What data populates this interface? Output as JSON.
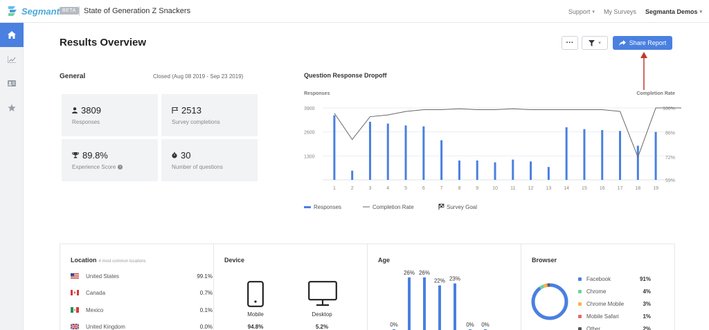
{
  "header": {
    "brand": "Segmanta",
    "beta": "BETA",
    "survey_title": "State of Generation Z Snackers",
    "support": "Support",
    "my_surveys": "My Surveys",
    "account": "Segmanta Demos"
  },
  "sidebar": {
    "items": [
      {
        "icon": "home-icon",
        "active": true
      },
      {
        "icon": "trend-icon",
        "active": false
      },
      {
        "icon": "id-card-icon",
        "active": false
      },
      {
        "icon": "star-icon",
        "active": false
      }
    ]
  },
  "page": {
    "title": "Results Overview",
    "more_label": "···",
    "share_label": "Share Report"
  },
  "general": {
    "title": "General",
    "closed": "Closed (Aug 08 2019 - Sep 23 2019)",
    "stats": [
      {
        "icon": "person-icon",
        "value": "3809",
        "label": "Responses"
      },
      {
        "icon": "flag-icon",
        "value": "2513",
        "label": "Survey completions"
      },
      {
        "icon": "trophy-icon",
        "value": "89.8%",
        "label": "Experience Score"
      },
      {
        "icon": "stopwatch-icon",
        "value": "30",
        "label": "Number of questions"
      }
    ]
  },
  "chart_data": [
    {
      "type": "bar",
      "title": "Question Response Dropoff",
      "ylabel": "Responses",
      "y2label": "Completion Rate",
      "yticks": [
        "3900",
        "2600",
        "1300"
      ],
      "y2ticks": [
        "100%",
        "86%",
        "72%",
        "59%"
      ],
      "ylim": [
        0,
        3900
      ],
      "y2lim": [
        59,
        100
      ],
      "categories": [
        "1",
        "2",
        "3",
        "4",
        "5",
        "6",
        "7",
        "8",
        "9",
        "10",
        "11",
        "12",
        "13",
        "14",
        "15",
        "16",
        "17",
        "18",
        "19"
      ],
      "series": [
        {
          "name": "Responses",
          "type": "bar",
          "values": [
            3500,
            500,
            3150,
            3050,
            2950,
            2900,
            2150,
            1050,
            1050,
            950,
            1100,
            1000,
            700,
            2850,
            2750,
            2700,
            2650,
            1850,
            2600
          ]
        },
        {
          "name": "Completion Rate",
          "type": "line",
          "values": [
            97,
            82,
            95,
            96,
            98,
            99,
            99,
            99.5,
            99,
            99,
            99.5,
            99,
            99,
            99,
            99,
            99,
            98,
            72,
            100
          ]
        }
      ],
      "legend": [
        "Responses",
        "Completion Rate",
        "Survey Goal"
      ],
      "legend_position": "bottom-left",
      "grid": true
    },
    {
      "type": "bar",
      "title": "Age",
      "categories": [
        "",
        "",
        "",
        "",
        "",
        "",
        ""
      ],
      "values": [
        0,
        26,
        26,
        22,
        23,
        0,
        0
      ],
      "data_labels": [
        "0%",
        "26%",
        "26%",
        "22%",
        "23%",
        "0%",
        "0%"
      ],
      "ylim": [
        0,
        26
      ]
    },
    {
      "type": "pie",
      "title": "Browser",
      "categories": [
        "Facebook",
        "Chrome",
        "Chrome Mobile",
        "Mobile Safari",
        "Other"
      ],
      "values": [
        91,
        4,
        3,
        1,
        2
      ],
      "data_labels": [
        "91%",
        "4%",
        "3%",
        "1%",
        "2%"
      ],
      "colors": [
        "#4a80e0",
        "#6fd1a0",
        "#f2b84b",
        "#e8666e",
        "#555555"
      ]
    }
  ],
  "location": {
    "title": "Location",
    "subtitle": "4 most common locations",
    "rows": [
      {
        "country": "United States",
        "pct": "99.1%"
      },
      {
        "country": "Canada",
        "pct": "0.7%"
      },
      {
        "country": "Mexico",
        "pct": "0.1%"
      },
      {
        "country": "United Kingdom",
        "pct": "0.0%"
      }
    ]
  },
  "device": {
    "title": "Device",
    "items": [
      {
        "icon": "mobile-icon",
        "label": "Mobile",
        "pct": "94.8%"
      },
      {
        "icon": "desktop-icon",
        "label": "Desktop",
        "pct": "5.2%"
      }
    ]
  },
  "colors": {
    "accent": "#4a80e0",
    "line": "#666666"
  }
}
